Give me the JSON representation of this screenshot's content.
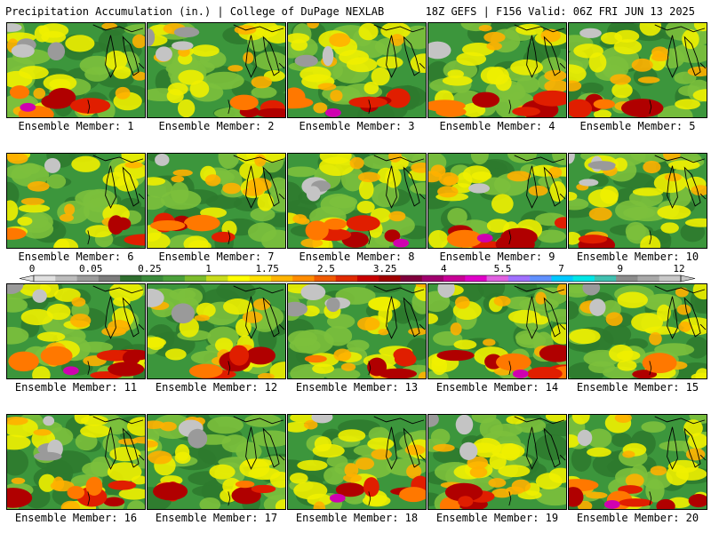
{
  "header": {
    "title": "Precipitation Accumulation (in.) | College of DuPage NEXLAB",
    "run_info": "18Z GEFS | F156 Valid: 06Z FRI JUN 13 2025"
  },
  "member_label_prefix": "Ensemble Member: ",
  "members": [
    {
      "number": "1",
      "seed": 11,
      "wet_south": 0.9,
      "gray_nw": 0.6
    },
    {
      "number": "2",
      "seed": 23,
      "wet_south": 0.5,
      "gray_nw": 0.7
    },
    {
      "number": "3",
      "seed": 37,
      "wet_south": 0.8,
      "gray_nw": 0.4
    },
    {
      "number": "4",
      "seed": 41,
      "wet_south": 0.7,
      "gray_nw": 0.2
    },
    {
      "number": "5",
      "seed": 53,
      "wet_south": 0.5,
      "gray_nw": 0.2
    },
    {
      "number": "6",
      "seed": 67,
      "wet_south": 0.5,
      "gray_nw": 0.1
    },
    {
      "number": "7",
      "seed": 71,
      "wet_south": 0.7,
      "gray_nw": 0.1
    },
    {
      "number": "8",
      "seed": 83,
      "wet_south": 0.8,
      "gray_nw": 0.5
    },
    {
      "number": "9",
      "seed": 97,
      "wet_south": 0.9,
      "gray_nw": 0.1
    },
    {
      "number": "10",
      "seed": 101,
      "wet_south": 0.3,
      "gray_nw": 0.8
    },
    {
      "number": "11",
      "seed": 113,
      "wet_south": 0.9,
      "gray_nw": 0.4
    },
    {
      "number": "12",
      "seed": 127,
      "wet_south": 0.6,
      "gray_nw": 0.3
    },
    {
      "number": "13",
      "seed": 131,
      "wet_south": 0.6,
      "gray_nw": 0.6
    },
    {
      "number": "14",
      "seed": 149,
      "wet_south": 0.9,
      "gray_nw": 0.2
    },
    {
      "number": "15",
      "seed": 151,
      "wet_south": 0.4,
      "gray_nw": 0.4
    },
    {
      "number": "16",
      "seed": 163,
      "wet_south": 0.7,
      "gray_nw": 0.6
    },
    {
      "number": "17",
      "seed": 173,
      "wet_south": 0.6,
      "gray_nw": 0.3
    },
    {
      "number": "18",
      "seed": 181,
      "wet_south": 0.8,
      "gray_nw": 0.2
    },
    {
      "number": "19",
      "seed": 191,
      "wet_south": 0.6,
      "gray_nw": 0.5
    },
    {
      "number": "20",
      "seed": 197,
      "wet_south": 0.9,
      "gray_nw": 0.1
    }
  ],
  "colorbar": {
    "labels": [
      "0",
      "0.05",
      "0.25",
      "1",
      "1.75",
      "2.5",
      "3.25",
      "4",
      "5.5",
      "7",
      "9",
      "12"
    ],
    "colors": [
      "#e0e0e0",
      "#bcbcbc",
      "#9c9c9c",
      "#7c7c7c",
      "#2f6e2f",
      "#3a8a3a",
      "#4aa03a",
      "#7cbc2c",
      "#c8dc1c",
      "#ffff00",
      "#ffe000",
      "#ffb400",
      "#ff8c00",
      "#f05a00",
      "#e02a00",
      "#c80000",
      "#a00000",
      "#80003c",
      "#a0006e",
      "#c80096",
      "#e000c8",
      "#e060e0",
      "#a070ff",
      "#6090ff",
      "#00c8ff",
      "#00e6e6",
      "#40c0b0",
      "#8c8c8c",
      "#a8a8a8",
      "#c8c8c8"
    ]
  }
}
